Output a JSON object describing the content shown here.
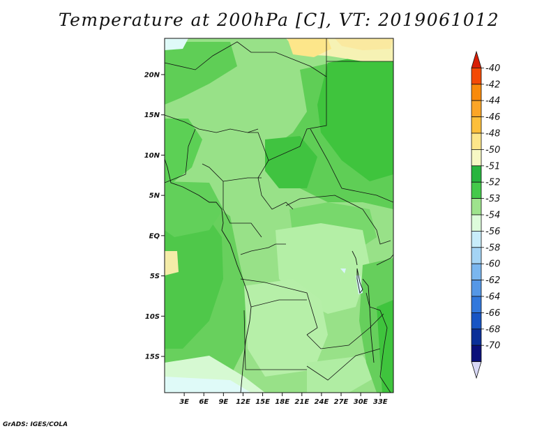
{
  "title": "Temperature at 200hPa [C], VT: 2019061012",
  "credit": "GrADS: IGES/COLA",
  "map": {
    "lat_labels": [
      "20N",
      "15N",
      "10N",
      "5N",
      "EQ",
      "5S",
      "10S",
      "15S"
    ],
    "lon_labels": [
      "3E",
      "6E",
      "9E",
      "12E",
      "15E",
      "18E",
      "21E",
      "24E",
      "27E",
      "30E",
      "33E"
    ],
    "lat_range": [
      -19.5,
      24.5
    ],
    "lon_range": [
      0,
      35
    ]
  },
  "colorbar": {
    "labels": [
      "-40",
      "-42",
      "-44",
      "-46",
      "-48",
      "-50",
      "-51",
      "-52",
      "-53",
      "-54",
      "-56",
      "-58",
      "-60",
      "-62",
      "-64",
      "-66",
      "-68",
      "-70"
    ],
    "colors": [
      "#d81e05",
      "#f44a05",
      "#f98a0a",
      "#fba527",
      "#fdbf3b",
      "#fde68a",
      "#f7f8c4",
      "#28b53e",
      "#44c94a",
      "#9ee38d",
      "#ddfcdb",
      "#c8ecfa",
      "#a4d4f5",
      "#7ab6ef",
      "#5597e6",
      "#3278dc",
      "#1855c4",
      "#0a2f98",
      "#0b107a",
      "#d8d8f6"
    ]
  }
}
